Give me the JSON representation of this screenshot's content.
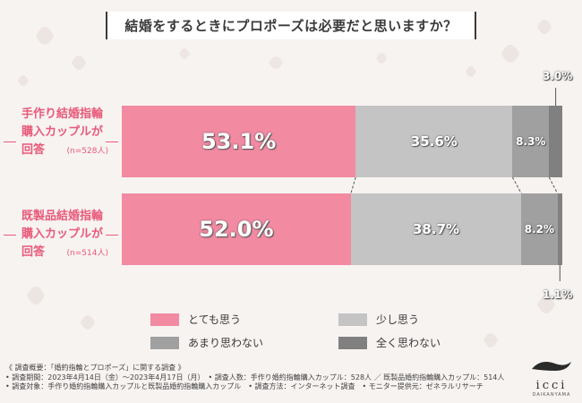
{
  "title": "結婚をするときにプロポーズは必要だと思いますか？",
  "colors": {
    "totemo": "#f28aa2",
    "sukoshi": "#c4c4c4",
    "amari": "#a0a0a0",
    "mattaku": "#808080",
    "accent": "#e85a7a"
  },
  "chart_data": {
    "type": "bar",
    "stacked": true,
    "orientation": "horizontal",
    "categories": [
      {
        "lines": [
          "手作り結婚指輪",
          "購入カップルが",
          "回答"
        ],
        "n": "(n=528人)"
      },
      {
        "lines": [
          "既製品結婚指輪",
          "購入カップルが",
          "回答"
        ],
        "n": "(n=514人)"
      }
    ],
    "series": [
      {
        "name": "とても思う",
        "values": [
          53.1,
          52.0
        ],
        "labels": [
          "53.1%",
          "52.0%"
        ]
      },
      {
        "name": "少し思う",
        "values": [
          35.6,
          38.7
        ],
        "labels": [
          "35.6%",
          "38.7%"
        ]
      },
      {
        "name": "あまり思わない",
        "values": [
          8.3,
          8.2
        ],
        "labels": [
          "8.3%",
          "8.2%"
        ]
      },
      {
        "name": "全く思わない",
        "values": [
          3.0,
          1.1
        ],
        "labels": [
          "3.0%",
          "1.1%"
        ]
      }
    ],
    "xlim": [
      0,
      100
    ],
    "legend_position": "bottom"
  },
  "legend": {
    "totemo": "とても思う",
    "sukoshi": "少し思う",
    "amari": "あまり思わない",
    "mattaku": "全く思わない"
  },
  "notes": [
    "《 調査概要：「婚約指輪とプロポーズ」に関する調査 》",
    "• 調査期間：2023年4月14日（金）〜2023年4月17日（月）　• 調査人数：手作り婚約指輪購入カップル：528人 ／ 既製品婚約指輪購入カップル：514人",
    "• 調査対象：手作り婚約指輪購入カップルと既製品婚約指輪購入カップル　• 調査方法：インターネット調査　• モニター提供元：ゼネラルリサーチ"
  ],
  "logo": {
    "text": "icci",
    "sub": "DAIKANYAMA"
  }
}
